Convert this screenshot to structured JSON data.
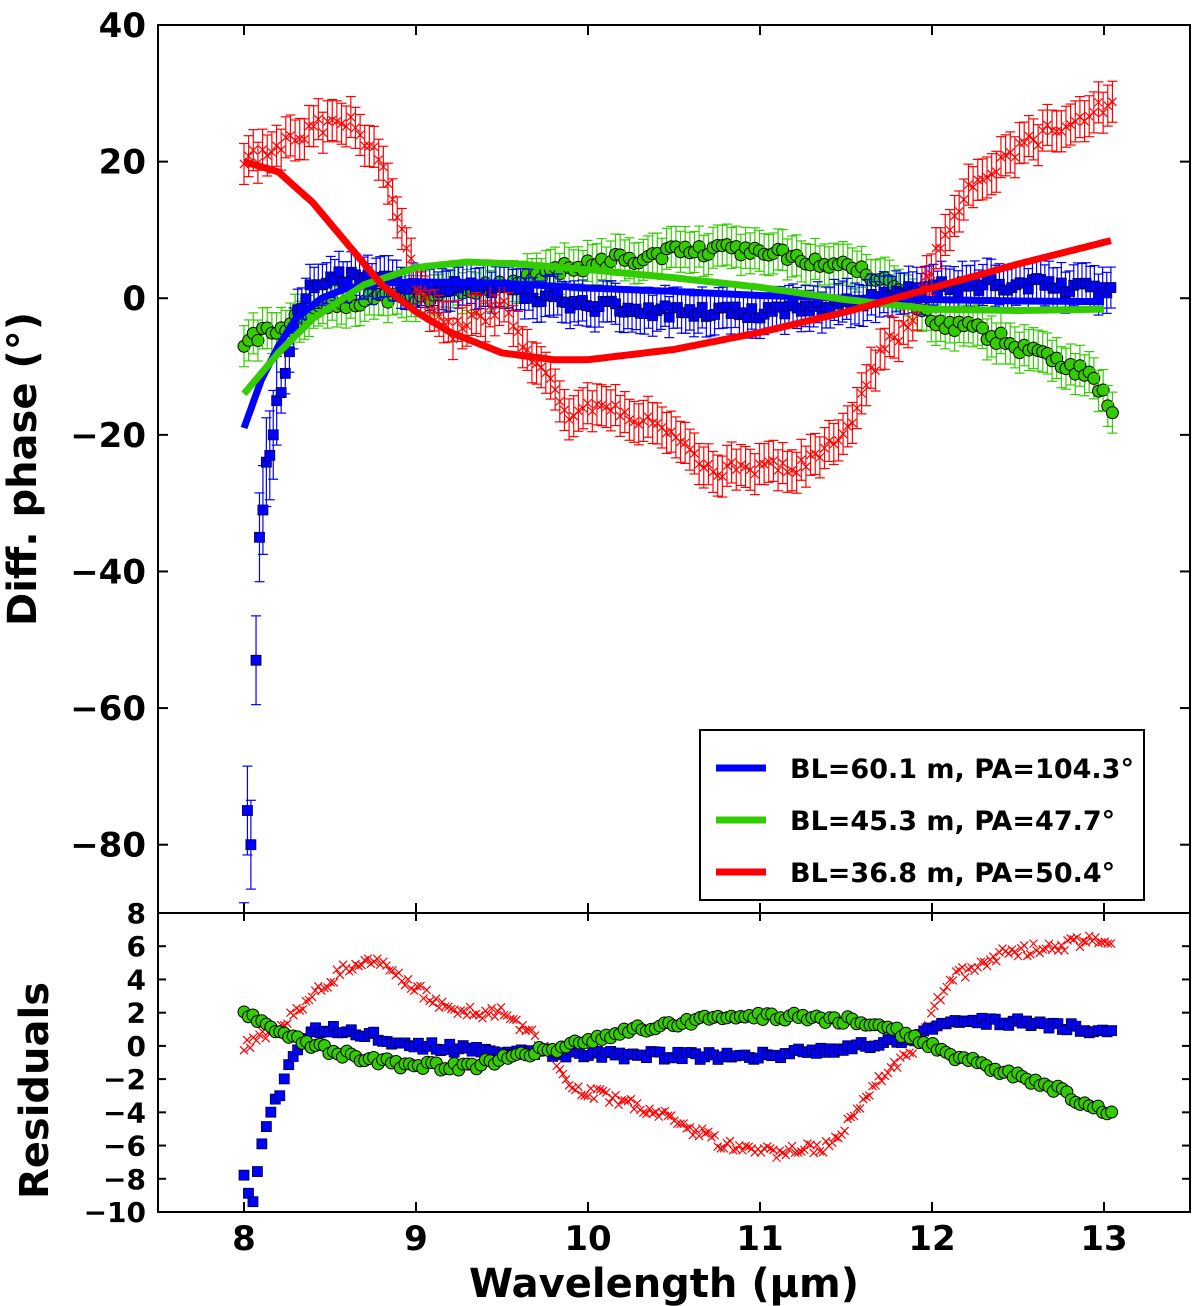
{
  "chart_data": [
    {
      "type": "scatter",
      "panel": "main",
      "ylabel": "Diff. phase (°)",
      "xlabel": "",
      "xlim": [
        7.5,
        13.5
      ],
      "ylim": [
        -90,
        40
      ],
      "y_ticks": [
        40,
        20,
        0,
        -20,
        -40,
        -60,
        -80
      ],
      "y_tick_labels": [
        "40",
        "20",
        "0",
        "−20",
        "−40",
        "−60",
        "−80"
      ],
      "grid": false,
      "legend_position": "bottom-right",
      "series": [
        {
          "name": "BL=60.1 m, PA=104.3°",
          "color": "#0000ff",
          "marker": "square",
          "model_x": [
            8.0,
            8.1,
            8.2,
            8.3,
            8.45,
            8.6,
            8.8,
            9.0,
            9.5,
            10.0,
            10.5,
            11.0,
            11.5,
            12.0,
            12.5,
            13.0
          ],
          "model_y": [
            -19,
            -12,
            -7,
            -3,
            0,
            1.5,
            2.2,
            2.4,
            2.2,
            1.5,
            1.0,
            0.4,
            0.0,
            -0.2,
            -0.4,
            -0.5
          ],
          "data_anchor_x": [
            8.0,
            8.02,
            8.04,
            8.06,
            8.08,
            8.1,
            8.12,
            8.14,
            8.16,
            8.18,
            8.2,
            8.22,
            8.25,
            8.3,
            8.4,
            8.5,
            8.7,
            9.0,
            9.5,
            10.0,
            10.5,
            11.0,
            11.5,
            11.8,
            12.2,
            12.6,
            13.05
          ],
          "data_anchor_y": [
            -95,
            -75,
            -80,
            -80,
            -53,
            -35,
            -31,
            -24,
            -23,
            -20,
            -15,
            -14,
            -9,
            -3,
            2,
            3,
            3,
            2,
            1,
            -1,
            -2,
            -2,
            -1,
            1,
            2,
            2,
            1
          ],
          "data_err": 3
        },
        {
          "name": "BL=45.3 m, PA=47.7°",
          "color": "#33cc00",
          "marker": "circle",
          "model_x": [
            8.0,
            8.2,
            8.4,
            8.7,
            9.0,
            9.3,
            9.6,
            10.0,
            10.5,
            11.0,
            11.5,
            12.0,
            12.5,
            13.0
          ],
          "model_y": [
            -14,
            -8,
            -3,
            2,
            4.5,
            5.3,
            5.0,
            4.2,
            3.0,
            1.6,
            -0.2,
            -1.6,
            -1.8,
            -1.6
          ],
          "data_anchor_x": [
            8.0,
            8.1,
            8.2,
            8.3,
            8.5,
            8.7,
            9.0,
            9.2,
            9.5,
            9.8,
            10.0,
            10.3,
            10.6,
            10.9,
            11.2,
            11.5,
            11.8,
            12.0,
            12.3,
            12.6,
            12.9,
            13.05
          ],
          "data_anchor_y": [
            -7,
            -5,
            -5,
            -3,
            -1,
            0,
            0,
            1,
            2,
            4,
            5,
            6,
            7,
            7,
            6,
            5,
            2,
            -3,
            -5,
            -8,
            -11,
            -16
          ],
          "data_err": 3
        },
        {
          "name": "BL=36.8 m, PA=50.4°",
          "color": "#ff0000",
          "marker": "x",
          "model_x": [
            8.0,
            8.2,
            8.4,
            8.6,
            8.8,
            9.0,
            9.2,
            9.5,
            9.8,
            10.0,
            10.5,
            11.0,
            11.5,
            12.0,
            12.5,
            13.05
          ],
          "model_y": [
            20,
            18.5,
            14,
            8,
            2,
            -2,
            -5,
            -8,
            -9,
            -9,
            -7.5,
            -5,
            -2,
            1.5,
            5,
            8.5
          ],
          "data_anchor_x": [
            8.0,
            8.2,
            8.4,
            8.6,
            8.8,
            8.9,
            9.0,
            9.2,
            9.5,
            9.7,
            9.9,
            10.1,
            10.4,
            10.7,
            11.0,
            11.2,
            11.5,
            11.7,
            11.9,
            12.0,
            12.2,
            12.5,
            12.8,
            13.05
          ],
          "data_anchor_y": [
            20,
            22,
            25,
            26,
            20,
            12,
            2,
            -5,
            -1,
            -10,
            -17,
            -16,
            -18,
            -25,
            -25,
            -25,
            -20,
            -8,
            -3,
            5,
            16,
            22,
            26,
            29
          ],
          "data_err": 3
        }
      ]
    },
    {
      "type": "scatter",
      "panel": "residuals",
      "ylabel": "Residuals",
      "xlabel": "Wavelength (μm)",
      "xlim": [
        7.5,
        13.5
      ],
      "ylim": [
        -10,
        8
      ],
      "x_ticks": [
        8,
        9,
        10,
        11,
        12,
        13
      ],
      "x_tick_labels": [
        "8",
        "9",
        "10",
        "11",
        "12",
        "13"
      ],
      "y_ticks": [
        8,
        6,
        4,
        2,
        0,
        -2,
        -4,
        -6,
        -8,
        -10
      ],
      "y_tick_labels": [
        "8",
        "6",
        "4",
        "2",
        "0",
        "−2",
        "−4",
        "−6",
        "−8",
        "−10"
      ],
      "grid": false,
      "series": [
        {
          "name": "BL=60.1 m, PA=104.3°",
          "color": "#0000ff",
          "marker": "square",
          "anchor_x": [
            8.0,
            8.05,
            8.1,
            8.15,
            8.2,
            8.25,
            8.3,
            8.4,
            8.6,
            9.0,
            9.5,
            10.0,
            10.5,
            11.0,
            11.5,
            11.9,
            12.1,
            12.3,
            12.7,
            13.05
          ],
          "anchor_y": [
            -8,
            -9.5,
            -6,
            -4,
            -3,
            -1.5,
            -0.3,
            1,
            1,
            0,
            -0.3,
            -0.5,
            -0.6,
            -0.6,
            -0.2,
            0.5,
            1.4,
            1.5,
            1.3,
            0.8
          ]
        },
        {
          "name": "BL=45.3 m, PA=47.7°",
          "color": "#33cc00",
          "marker": "circle",
          "anchor_x": [
            8.0,
            8.2,
            8.4,
            8.7,
            9.0,
            9.3,
            9.6,
            9.9,
            10.2,
            10.6,
            11.0,
            11.3,
            11.6,
            11.9,
            12.1,
            12.4,
            12.7,
            13.05
          ],
          "anchor_y": [
            2,
            1,
            0,
            -0.8,
            -1.2,
            -1.3,
            -0.5,
            0,
            0.8,
            1.5,
            1.8,
            1.7,
            1.5,
            0.5,
            -0.5,
            -1.5,
            -2.5,
            -4.2
          ]
        },
        {
          "name": "BL=36.8 m, PA=50.4°",
          "color": "#ff0000",
          "marker": "x",
          "anchor_x": [
            8.0,
            8.2,
            8.4,
            8.6,
            8.8,
            9.0,
            9.2,
            9.5,
            9.7,
            9.9,
            10.1,
            10.4,
            10.8,
            11.1,
            11.4,
            11.7,
            11.9,
            12.1,
            12.4,
            12.7,
            13.05
          ],
          "anchor_y": [
            0,
            1,
            3,
            4.8,
            5,
            3.5,
            2,
            2,
            0.5,
            -2.5,
            -3,
            -4,
            -6,
            -6.5,
            -6,
            -2,
            0,
            4,
            5.5,
            6,
            6.5
          ]
        }
      ]
    }
  ]
}
